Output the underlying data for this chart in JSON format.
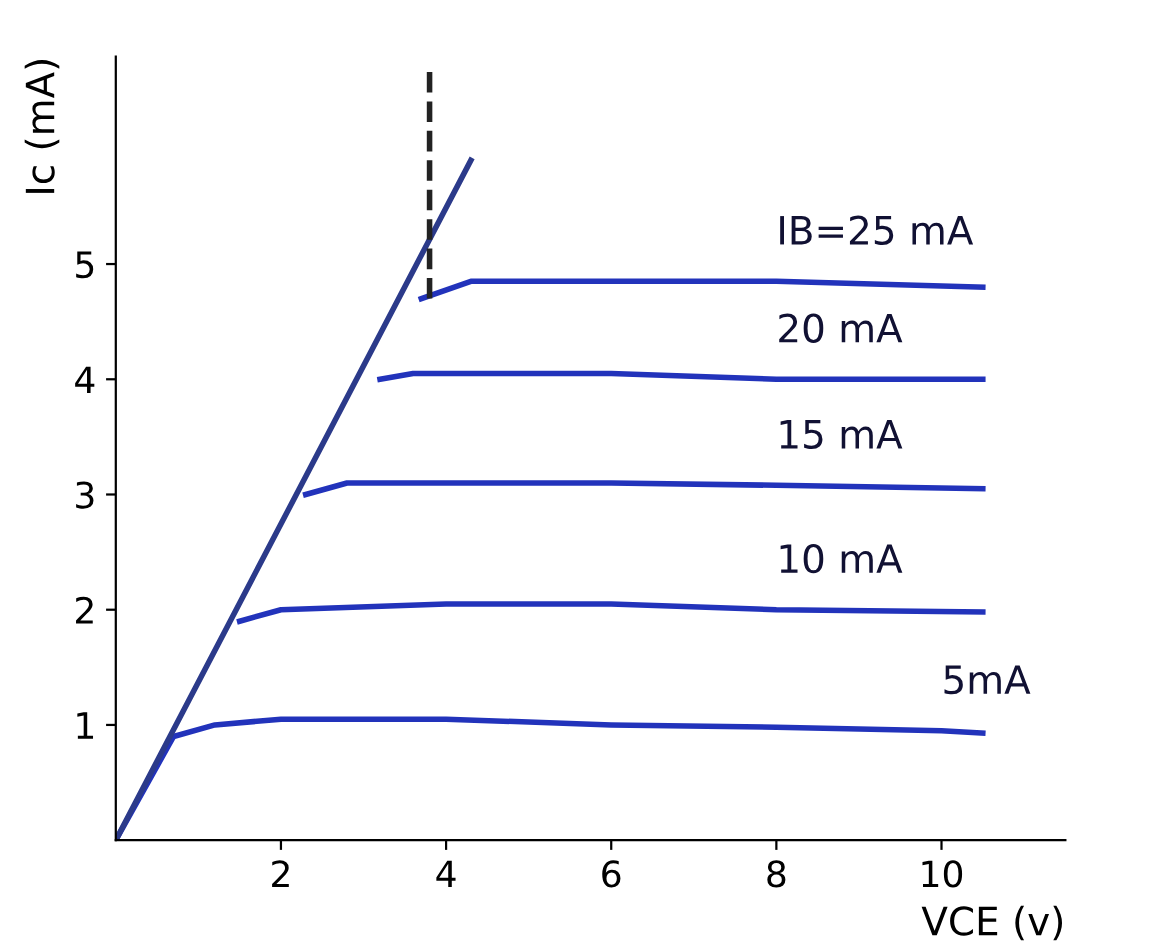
{
  "chart_data": {
    "type": "line",
    "xlabel": "VCE (v)",
    "ylabel": "Ic (mA)",
    "xlim": [
      0,
      11.5
    ],
    "ylim": [
      0,
      6.8
    ],
    "xticks": [
      2,
      4,
      6,
      8,
      10
    ],
    "yticks": [
      1,
      2,
      3,
      4,
      5
    ],
    "grid": false,
    "legend": false,
    "marker": "none",
    "series": [
      {
        "name": "5mA",
        "color": "#2233bb",
        "x": [
          0,
          0.7,
          1.2,
          2,
          4,
          6,
          8,
          10,
          10.5
        ],
        "values": [
          0,
          0.9,
          1.0,
          1.05,
          1.05,
          1.0,
          0.98,
          0.95,
          0.93
        ]
      },
      {
        "name": "10 mA",
        "color": "#2233bb",
        "x": [
          1.5,
          2,
          4,
          6,
          8,
          10.5
        ],
        "values": [
          1.9,
          2.0,
          2.05,
          2.05,
          2.0,
          1.98
        ]
      },
      {
        "name": "15 mA",
        "color": "#2233bb",
        "x": [
          2.3,
          2.8,
          4,
          6,
          8,
          10.5
        ],
        "values": [
          3.0,
          3.1,
          3.1,
          3.1,
          3.08,
          3.05
        ]
      },
      {
        "name": "20 mA",
        "color": "#2233bb",
        "x": [
          3.2,
          3.6,
          4,
          6,
          8,
          10.5
        ],
        "values": [
          4.0,
          4.05,
          4.05,
          4.05,
          4.0,
          4.0
        ]
      },
      {
        "name": "IB=25 mA",
        "color": "#2233bb",
        "x": [
          3.7,
          4.3,
          6,
          8,
          10.5
        ],
        "values": [
          4.7,
          4.85,
          4.85,
          4.85,
          4.8
        ]
      },
      {
        "color": "#2b3a8a",
        "x": [
          0,
          4.3
        ],
        "values": [
          0,
          5.9
        ]
      },
      {
        "color": "#222222",
        "line_style": "dashed",
        "x": [
          3.8,
          3.8
        ],
        "values": [
          4.7,
          6.7
        ]
      }
    ]
  }
}
